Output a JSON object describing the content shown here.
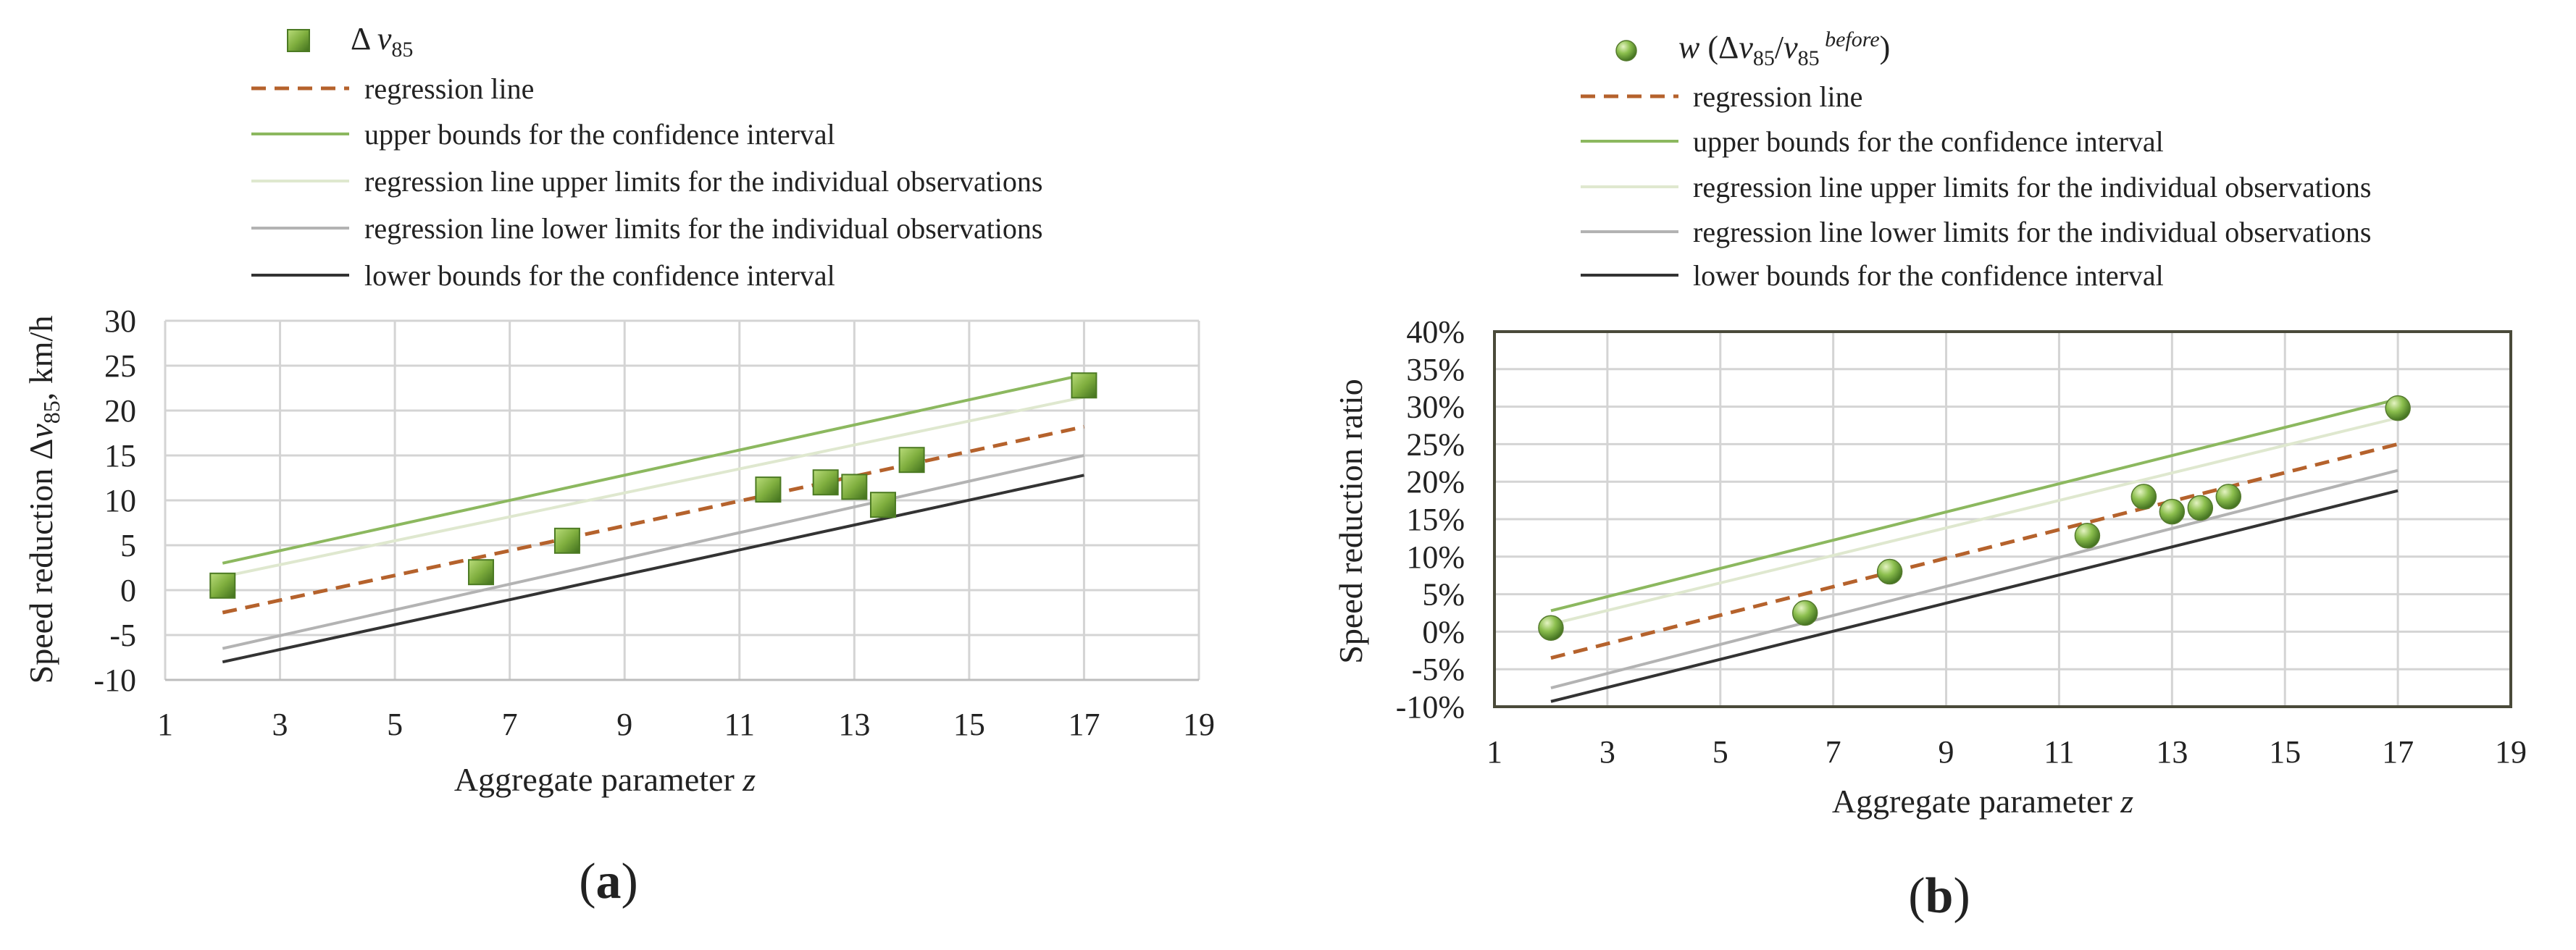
{
  "chart_data": [
    {
      "panel_label": "a",
      "type": "scatter",
      "xlabel_text": "Aggregate parameter ",
      "xlabel_var": "z",
      "ylabel_pre": "Speed reduction Δ",
      "ylabel_var": "v",
      "ylabel_sub": "85",
      "ylabel_post": ", km/h",
      "xlim": [
        1,
        19
      ],
      "ylim": [
        -10,
        30
      ],
      "xticks": [
        1,
        3,
        5,
        7,
        9,
        11,
        13,
        15,
        17,
        19
      ],
      "yticks": [
        -10,
        -5,
        0,
        5,
        10,
        15,
        20,
        25,
        30
      ],
      "ytick_format": "num",
      "grid": true,
      "legend": {
        "position": "top",
        "marker": "square",
        "points_label_pre": "Δ ",
        "points_label_var": "v",
        "points_label_sub": "85",
        "points_label_sup": "",
        "points_label_post": "",
        "entries": [
          "regression line",
          "upper bounds for the confidence interval",
          "regression line upper limits for the individual observations",
          "regression line lower limits for the individual observations",
          "lower bounds for the confidence interval"
        ]
      },
      "points": [
        [
          2,
          0.5
        ],
        [
          6.5,
          2
        ],
        [
          8,
          5.5
        ],
        [
          11.5,
          11.2
        ],
        [
          12.5,
          12
        ],
        [
          13,
          11.5
        ],
        [
          13.5,
          9.5
        ],
        [
          14,
          14.5
        ],
        [
          17,
          22.8
        ]
      ],
      "series": [
        {
          "name": "regression line",
          "x": [
            2,
            17
          ],
          "y": [
            -2.5,
            18.2
          ],
          "color": "#b5622c",
          "style": "dashed"
        },
        {
          "name": "upper bounds for the confidence interval",
          "x": [
            2,
            17
          ],
          "y": [
            3,
            24
          ],
          "color": "#8cb85f",
          "style": "solid"
        },
        {
          "name": "regression line upper limits for the individual observations",
          "x": [
            2,
            17
          ],
          "y": [
            1.5,
            21.5
          ],
          "color": "#dfe8cf",
          "style": "solid"
        },
        {
          "name": "regression line lower limits for the individual observations",
          "x": [
            2,
            17
          ],
          "y": [
            -6.5,
            15
          ],
          "color": "#b3b3b3",
          "style": "solid"
        },
        {
          "name": "lower bounds for the confidence interval",
          "x": [
            2,
            17
          ],
          "y": [
            -8,
            12.8
          ],
          "color": "#333333",
          "style": "solid"
        }
      ]
    },
    {
      "panel_label": "b",
      "type": "scatter",
      "xlabel_text": "Aggregate parameter ",
      "xlabel_var": "z",
      "ylabel_pre": "Speed reduction ratio",
      "ylabel_var": "",
      "ylabel_sub": "",
      "ylabel_post": "",
      "xlim": [
        1,
        19
      ],
      "ylim": [
        -10,
        40
      ],
      "xticks": [
        1,
        3,
        5,
        7,
        9,
        11,
        13,
        15,
        17,
        19
      ],
      "yticks": [
        -10,
        -5,
        0,
        5,
        10,
        15,
        20,
        25,
        30,
        35,
        40
      ],
      "ytick_format": "percent",
      "grid": true,
      "legend": {
        "position": "top",
        "marker": "sphere",
        "points_label_pre": "w (Δ",
        "points_label_var": "v",
        "points_label_sub": "85",
        "points_label_sup": "",
        "points_label_post": "/v",
        "points_label_sub2": "85",
        "points_label_sup2": " before",
        "points_label_end": ")",
        "entries": [
          "regression line",
          "upper bounds for the confidence interval",
          "regression line upper limits for the individual observations",
          "regression line lower limits for the individual observations",
          "lower bounds for the confidence interval"
        ]
      },
      "points": [
        [
          2,
          0.5
        ],
        [
          6.5,
          2.5
        ],
        [
          8,
          8
        ],
        [
          11.5,
          12.8
        ],
        [
          12.5,
          18
        ],
        [
          13,
          16
        ],
        [
          13.5,
          16.5
        ],
        [
          14,
          18
        ],
        [
          17,
          29.8
        ]
      ],
      "series": [
        {
          "name": "regression line",
          "x": [
            2,
            17
          ],
          "y": [
            -3.5,
            25
          ],
          "color": "#b5622c",
          "style": "dashed"
        },
        {
          "name": "upper bounds for the confidence interval",
          "x": [
            2,
            17
          ],
          "y": [
            2.8,
            31
          ],
          "color": "#8cb85f",
          "style": "solid"
        },
        {
          "name": "regression line upper limits for the individual observations",
          "x": [
            2,
            17
          ],
          "y": [
            1,
            28.5
          ],
          "color": "#dfe8cf",
          "style": "solid"
        },
        {
          "name": "regression line lower limits for the individual observations",
          "x": [
            2,
            17
          ],
          "y": [
            -7.5,
            21.5
          ],
          "color": "#b3b3b3",
          "style": "solid"
        },
        {
          "name": "lower bounds for the confidence interval",
          "x": [
            2,
            17
          ],
          "y": [
            -9.3,
            18.8
          ],
          "color": "#333333",
          "style": "solid"
        }
      ]
    }
  ]
}
